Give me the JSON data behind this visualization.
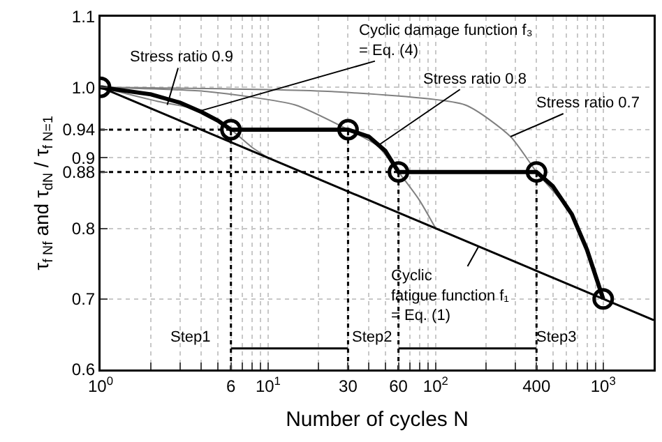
{
  "chart_data": {
    "type": "line",
    "xlabel": "Number of cycles N",
    "ylabel": "τ$_{f Nf}$ and τ$_{dN}$ / τ$_{f N=1}$",
    "log": "x",
    "grid": true,
    "xlim": [
      1,
      2000
    ],
    "xticks": [
      {
        "value": 1,
        "label": "10$^{0}$"
      },
      {
        "value": 2,
        "label": null
      },
      {
        "value": 3,
        "label": null
      },
      {
        "value": 4,
        "label": null
      },
      {
        "value": 5,
        "label": null
      },
      {
        "value": 6,
        "label": "6"
      },
      {
        "value": 7,
        "label": null
      },
      {
        "value": 8,
        "label": null
      },
      {
        "value": 9,
        "label": null
      },
      {
        "value": 10,
        "label": "10$^{1}$"
      },
      {
        "value": 20,
        "label": null
      },
      {
        "value": 30,
        "label": "30"
      },
      {
        "value": 40,
        "label": null
      },
      {
        "value": 50,
        "label": null
      },
      {
        "value": 60,
        "label": "60"
      },
      {
        "value": 70,
        "label": null
      },
      {
        "value": 80,
        "label": null
      },
      {
        "value": 90,
        "label": null
      },
      {
        "value": 100,
        "label": "10$^{2}$"
      },
      {
        "value": 200,
        "label": null
      },
      {
        "value": 300,
        "label": null
      },
      {
        "value": 400,
        "label": "400"
      },
      {
        "value": 500,
        "label": null
      },
      {
        "value": 600,
        "label": null
      },
      {
        "value": 700,
        "label": null
      },
      {
        "value": 800,
        "label": null
      },
      {
        "value": 900,
        "label": null
      },
      {
        "value": 1000,
        "label": "10$^{3}$"
      }
    ],
    "ylim": [
      0.6,
      1.1
    ],
    "yticks": [
      0.6,
      0.7,
      0.8,
      0.88,
      0.9,
      0.94,
      {
        "value": 1,
        "label": "1.0"
      },
      1.1
    ],
    "series": [
      {
        "type": "line",
        "color": "#808080",
        "line_style": "solid",
        "x": [
          1,
          2.2,
          4,
          6,
          8,
          10
        ],
        "values": [
          1,
          0.98,
          0.967,
          0.94,
          0.915,
          0.9
        ]
      },
      {
        "type": "line",
        "color": "#808080",
        "line_style": "solid",
        "x": [
          1,
          4.3,
          14.5,
          30,
          45,
          60,
          80,
          100
        ],
        "values": [
          1,
          0.994,
          0.975,
          0.94,
          0.917,
          0.88,
          0.84,
          0.8
        ]
      },
      {
        "type": "line",
        "color": "#808080",
        "line_style": "solid",
        "x": [
          1,
          24,
          150,
          280,
          400,
          650,
          1000
        ],
        "values": [
          1,
          0.994,
          0.975,
          0.93,
          0.88,
          0.82,
          0.7
        ]
      },
      {
        "type": "line",
        "color": "#000000",
        "line_style": "solid",
        "x": [
          1,
          2000
        ],
        "values": [
          1,
          0.67
        ]
      },
      {
        "type": "line",
        "color": "#000000",
        "line_style": "dotted",
        "x": [
          1,
          6
        ],
        "values": [
          0.94,
          0.94
        ]
      },
      {
        "type": "line",
        "color": "#000000",
        "line_style": "dotted",
        "x": [
          1,
          60
        ],
        "values": [
          0.88,
          0.88
        ]
      },
      {
        "type": "line",
        "color": "#000000",
        "line_style": "dotted",
        "x": [
          6,
          6
        ],
        "values": [
          0.6,
          0.94
        ]
      },
      {
        "type": "line",
        "color": "#000000",
        "line_style": "dotted",
        "x": [
          30,
          30
        ],
        "values": [
          0.6,
          0.94
        ]
      },
      {
        "type": "line",
        "color": "#000000",
        "line_style": "dotted",
        "x": [
          60,
          60
        ],
        "values": [
          0.6,
          0.88
        ]
      },
      {
        "type": "line",
        "color": "#000000",
        "line_style": "dotted",
        "x": [
          400,
          400
        ],
        "values": [
          0.6,
          0.88
        ]
      },
      {
        "type": "line",
        "color": "#000000",
        "line_style": "solid",
        "x": [
          6,
          30
        ],
        "values": [
          0.63,
          0.63
        ]
      },
      {
        "type": "line",
        "color": "#000000",
        "line_style": "solid",
        "x": [
          60,
          400
        ],
        "values": [
          0.63,
          0.63
        ]
      },
      {
        "color": "#000000",
        "line_style": "solid",
        "x": [
          1,
          2,
          3,
          4,
          5,
          6,
          30,
          40,
          50,
          60,
          400,
          500,
          650,
          800,
          1000
        ],
        "values": [
          1,
          0.99,
          0.978,
          0.965,
          0.953,
          0.94,
          0.94,
          0.93,
          0.91,
          0.88,
          0.88,
          0.86,
          0.82,
          0.77,
          0.7
        ]
      },
      {
        "type": "scatter",
        "color": "#000000",
        "marker": "circle",
        "x": [
          1,
          6,
          30,
          60,
          400,
          1000
        ],
        "values": [
          1,
          0.94,
          0.94,
          0.88,
          0.88,
          0.7
        ]
      }
    ],
    "annotations": [
      {
        "text": "Stress ratio 0.9",
        "x": 2.5,
        "y": 0.975
      },
      {
        "text": "Cyclic damage function f₃\n= Eq. (4)",
        "x": 4,
        "y": 0.967
      },
      {
        "text": "Stress ratio 0.8",
        "x": 45,
        "y": 0.917
      },
      {
        "text": "Stress ratio 0.7",
        "x": 280,
        "y": 0.93
      },
      {
        "text": "Cyclic\nfatigue function f₁\n= Eq. (1)",
        "x": 180,
        "y": 0.774
      },
      "Step1",
      "Step2",
      "Step3"
    ]
  }
}
